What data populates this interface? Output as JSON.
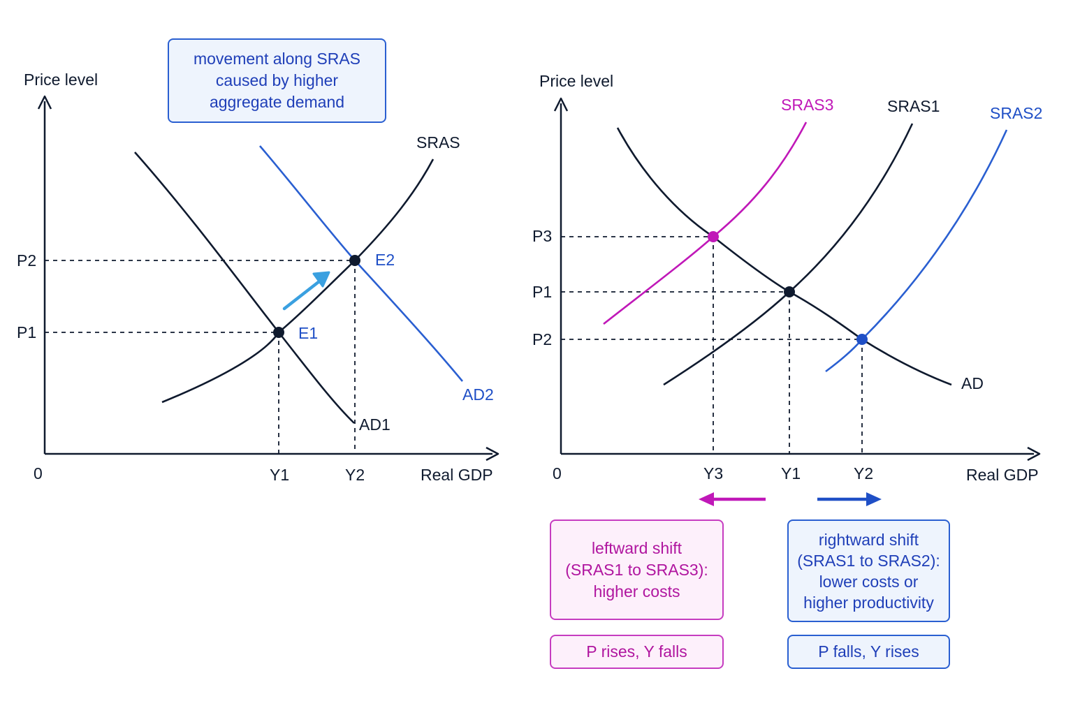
{
  "left_panel": {
    "y_axis_label": "Price level",
    "x_axis_label": "Real GDP",
    "origin_label": "0",
    "price_ticks": [
      "P2",
      "P1"
    ],
    "output_ticks": [
      "Y1",
      "Y2"
    ],
    "curves": {
      "sras": "SRAS",
      "ad1": "AD1",
      "ad2": "AD2"
    },
    "points": {
      "e1": "E1",
      "e2": "E2"
    },
    "callout": [
      "movement along SRAS",
      "caused by higher",
      "aggregate demand"
    ]
  },
  "right_panel": {
    "y_axis_label": "Price level",
    "x_axis_label": "Real GDP",
    "origin_label": "0",
    "price_ticks": [
      "P3",
      "P1",
      "P2"
    ],
    "output_ticks": [
      "Y3",
      "Y1",
      "Y2"
    ],
    "curves": {
      "sras3": "SRAS3",
      "sras1": "SRAS1",
      "sras2": "SRAS2",
      "ad": "AD"
    },
    "left_box": [
      "leftward shift",
      "(SRAS1 to SRAS3):",
      "higher costs"
    ],
    "left_result": "P rises, Y falls",
    "right_box": [
      "rightward shift",
      "(SRAS1 to SRAS2):",
      "lower costs or",
      "higher productivity"
    ],
    "right_result": "P falls, Y rises"
  },
  "colors": {
    "dark": "#0f1a2e",
    "blue": "#1f4fc6",
    "magenta": "#c018b8",
    "arrow_light_blue": "#3aa0e0"
  }
}
